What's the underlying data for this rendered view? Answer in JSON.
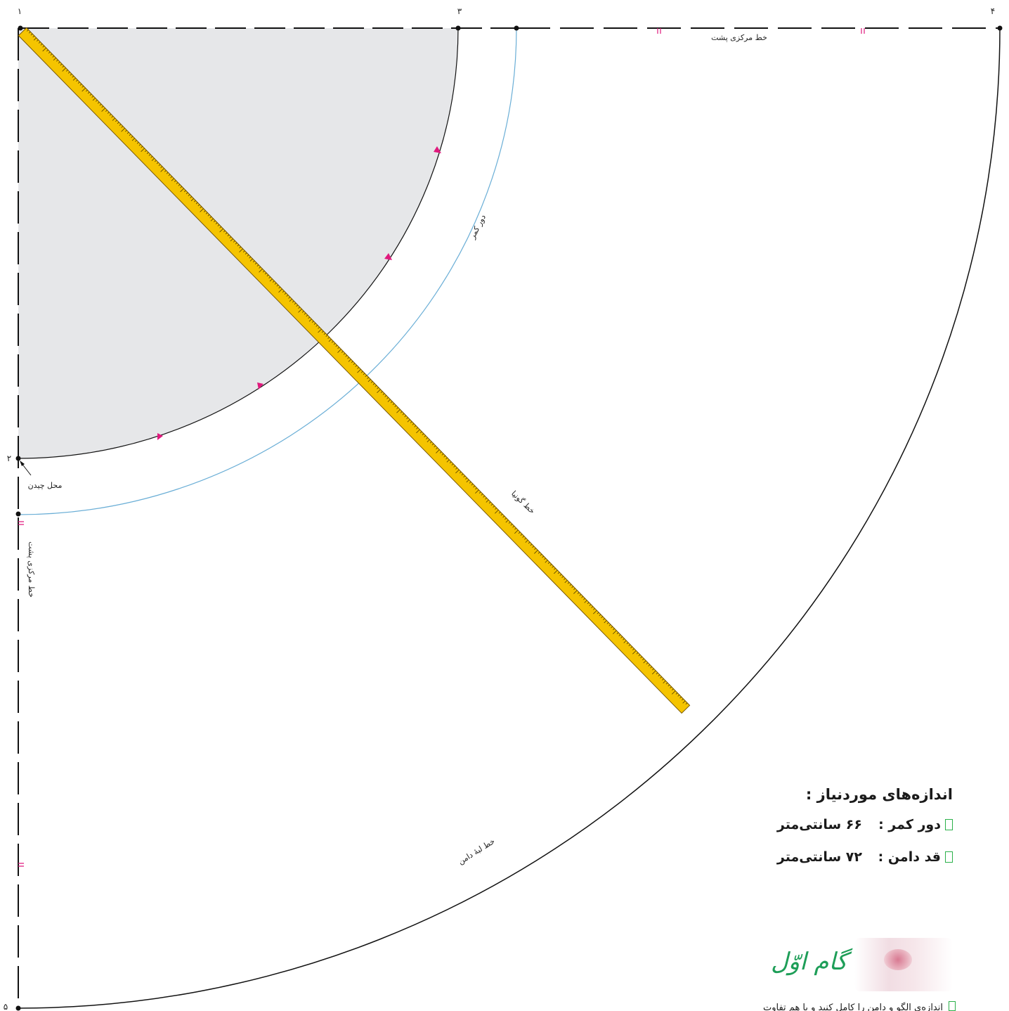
{
  "points": {
    "p1": "۱",
    "p2": "۲",
    "p3": "۳",
    "p4": "۴",
    "p5": "۵"
  },
  "labels": {
    "back_center_top": "خط مرکزی پشت",
    "back_center_left": "خط مرکزی پشت",
    "waist_circle": "دور کمر",
    "hem_line": "خط لبهٔ دامن",
    "placement": "محل چیدن",
    "ruler_note": "خط گونیا"
  },
  "measurements": {
    "heading": "اندازه‌های موردنیاز :",
    "rows": [
      {
        "label": "دور کمر :",
        "value": "۶۶ سانتی‌متر"
      },
      {
        "label": "قد دامن :",
        "value": "۷۲ سانتی‌متر"
      }
    ]
  },
  "step": {
    "title": "گام اوّل"
  },
  "bottom_note": "اندازه‌ی الگو و دامن را کامل کنید و با هم تفاوت",
  "colors": {
    "waist_fill": "#e6e7e9",
    "waist_seam": "#6aaed6",
    "notch": "#e0197d",
    "ruler": "#f5c400",
    "ruler_edge": "#7a5a00",
    "line": "#111111",
    "accent_green": "#1e9e58"
  }
}
